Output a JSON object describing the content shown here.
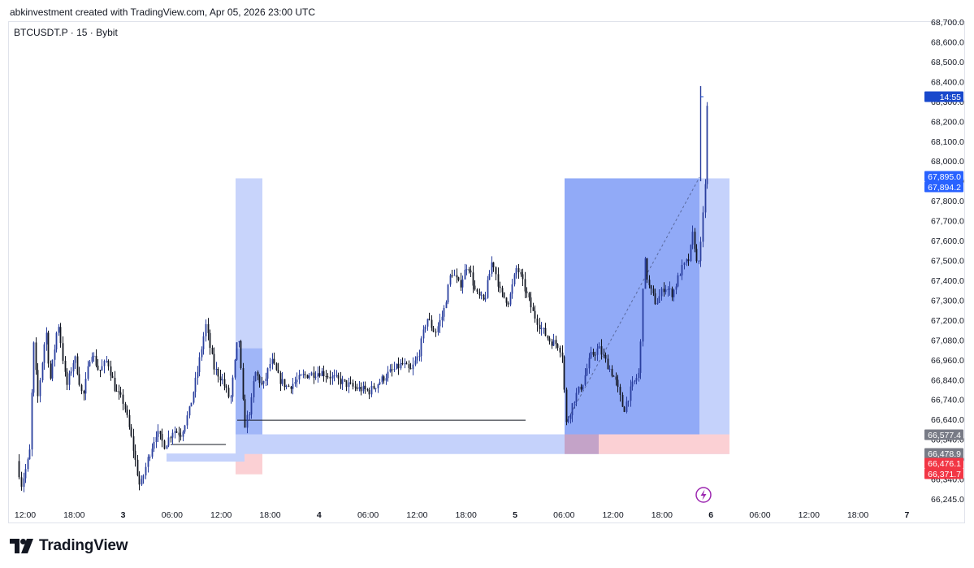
{
  "caption": "abkinvestment created with TradingView.com, Apr 05, 2026 23:00 UTC",
  "symbol_line": "BTCUSDT.P · 15 · Bybit",
  "brand": "TradingView",
  "colors": {
    "up_candle": "#2a3f9e",
    "down_candle": "#131722",
    "zone_blue": "#7f9cf5",
    "zone_blue_light": "#c5d2fb",
    "zone_red": "#fbd0d4",
    "label_blue": "#2962ff",
    "label_red": "#f23645",
    "label_gray": "#787b86",
    "lightning": "#9c27b0"
  },
  "icons": {
    "event": "lightning-icon",
    "logo": "tradingview-logo-icon"
  },
  "chart_data": {
    "type": "candlestick",
    "title": "BTCUSDT.P · 15 · Bybit",
    "xlabel": "",
    "ylabel": "",
    "x_ticks": [
      "12:00",
      "18:00",
      "3",
      "06:00",
      "12:00",
      "18:00",
      "4",
      "06:00",
      "12:00",
      "18:00",
      "5",
      "06:00",
      "12:00",
      "18:00",
      "6",
      "06:00",
      "12:00",
      "18:00",
      "7"
    ],
    "y_ticks": [
      "68,700.0",
      "68,600.0",
      "68,500.0",
      "68,400.0",
      "68,300.0",
      "68,200.0",
      "68,100.0",
      "68,000.0",
      "67,900.0",
      "67,800.0",
      "67,700.0",
      "67,600.0",
      "67,500.0",
      "67,400.0",
      "67,300.0",
      "67,200.0",
      "67,080.0",
      "66,960.0",
      "66,840.0",
      "66,740.0",
      "66,640.0",
      "66,540.0",
      "66,440.0",
      "66,340.0",
      "66,245.0"
    ],
    "ylim": [
      66200,
      68750
    ],
    "price_labels": [
      {
        "text": "14:55",
        "color": "blue"
      },
      {
        "text": "67,895.0",
        "color": "blue"
      },
      {
        "text": "67,894.2",
        "color": "blue"
      },
      {
        "text": "66,577.4",
        "color": "gray"
      },
      {
        "text": "66,478.9",
        "color": "gray"
      },
      {
        "text": "66,476.1",
        "color": "red"
      },
      {
        "text": "66,371.7",
        "color": "red"
      }
    ],
    "price_label_values": [
      68320,
      67895.0,
      67894.2,
      66577.4,
      66478.9,
      66476.1,
      66371.7
    ],
    "last_price": 68320,
    "series": [
      {
        "name": "",
        "path": [
          [
            "Apr 2 11:00",
            66440
          ],
          [
            "Apr 2 11:30",
            66320
          ],
          [
            "Apr 2 12:30",
            66470
          ],
          [
            "Apr 2 13:00",
            67050
          ],
          [
            "Apr 2 13:30",
            66760
          ],
          [
            "Apr 2 14:30",
            67120
          ],
          [
            "Apr 2 15:00",
            66850
          ],
          [
            "Apr 2 16:00",
            67160
          ],
          [
            "Apr 2 17:00",
            66820
          ],
          [
            "Apr 2 18:00",
            66980
          ],
          [
            "Apr 2 19:00",
            66760
          ],
          [
            "Apr 2 20:00",
            67010
          ],
          [
            "Apr 2 21:00",
            66900
          ],
          [
            "Apr 2 22:00",
            66960
          ],
          [
            "Apr 2 23:00",
            66800
          ],
          [
            "Apr 3 00:00",
            66740
          ],
          [
            "Apr 3 01:00",
            66540
          ],
          [
            "Apr 3 02:00",
            66300
          ],
          [
            "Apr 3 03:00",
            66460
          ],
          [
            "Apr 3 04:00",
            66590
          ],
          [
            "Apr 3 05:00",
            66520
          ],
          [
            "Apr 3 06:00",
            66600
          ],
          [
            "Apr 3 07:00",
            66580
          ],
          [
            "Apr 3 08:00",
            66700
          ],
          [
            "Apr 3 09:00",
            66900
          ],
          [
            "Apr 3 10:00",
            67140
          ],
          [
            "Apr 3 11:00",
            66920
          ],
          [
            "Apr 3 12:00",
            66860
          ],
          [
            "Apr 3 13:00",
            66750
          ],
          [
            "Apr 3 14:00",
            67100
          ],
          [
            "Apr 3 14:45",
            66620
          ],
          [
            "Apr 3 15:30",
            66720
          ],
          [
            "Apr 3 16:00",
            66900
          ],
          [
            "Apr 3 17:00",
            66820
          ],
          [
            "Apr 3 18:00",
            66960
          ],
          [
            "Apr 3 19:00",
            66860
          ],
          [
            "Apr 3 20:00",
            66820
          ],
          [
            "Apr 3 22:00",
            66880
          ],
          [
            "Apr 4 00:00",
            66900
          ],
          [
            "Apr 4 02:00",
            66860
          ],
          [
            "Apr 4 04:00",
            66820
          ],
          [
            "Apr 4 06:00",
            66800
          ],
          [
            "Apr 4 08:00",
            66880
          ],
          [
            "Apr 4 10:00",
            66940
          ],
          [
            "Apr 4 11:00",
            66900
          ],
          [
            "Apr 4 12:00",
            66990
          ],
          [
            "Apr 4 13:00",
            67180
          ],
          [
            "Apr 4 14:00",
            67100
          ],
          [
            "Apr 4 15:00",
            67200
          ],
          [
            "Apr 4 16:00",
            67420
          ],
          [
            "Apr 4 17:00",
            67340
          ],
          [
            "Apr 4 18:00",
            67460
          ],
          [
            "Apr 4 19:00",
            67300
          ],
          [
            "Apr 4 20:00",
            67260
          ],
          [
            "Apr 4 21:00",
            67480
          ],
          [
            "Apr 4 22:00",
            67300
          ],
          [
            "Apr 4 23:00",
            67260
          ],
          [
            "Apr 5 00:00",
            67440
          ],
          [
            "Apr 5 01:00",
            67320
          ],
          [
            "Apr 5 02:00",
            67200
          ],
          [
            "Apr 5 03:00",
            67120
          ],
          [
            "Apr 5 04:00",
            67060
          ],
          [
            "Apr 5 05:00",
            67040
          ],
          [
            "Apr 5 05:30",
            67000
          ],
          [
            "Apr 5 06:00",
            66630
          ],
          [
            "Apr 5 07:00",
            66760
          ],
          [
            "Apr 5 08:00",
            66840
          ],
          [
            "Apr 5 09:00",
            66980
          ],
          [
            "Apr 5 10:00",
            67020
          ],
          [
            "Apr 5 11:00",
            66940
          ],
          [
            "Apr 5 12:00",
            66860
          ],
          [
            "Apr 5 13:00",
            66700
          ],
          [
            "Apr 5 14:00",
            66820
          ],
          [
            "Apr 5 15:00",
            66900
          ],
          [
            "Apr 5 15:30",
            67500
          ],
          [
            "Apr 5 16:00",
            67350
          ],
          [
            "Apr 5 17:00",
            67250
          ],
          [
            "Apr 5 18:00",
            67340
          ],
          [
            "Apr 5 19:00",
            67300
          ],
          [
            "Apr 5 20:00",
            67420
          ],
          [
            "Apr 5 21:00",
            67480
          ],
          [
            "Apr 5 21:30",
            67620
          ],
          [
            "Apr 5 22:00",
            67440
          ],
          [
            "Apr 5 22:30",
            67560
          ],
          [
            "Apr 5 23:00",
            67900
          ],
          [
            "Apr 5 23:15",
            68320
          ]
        ]
      }
    ]
  }
}
